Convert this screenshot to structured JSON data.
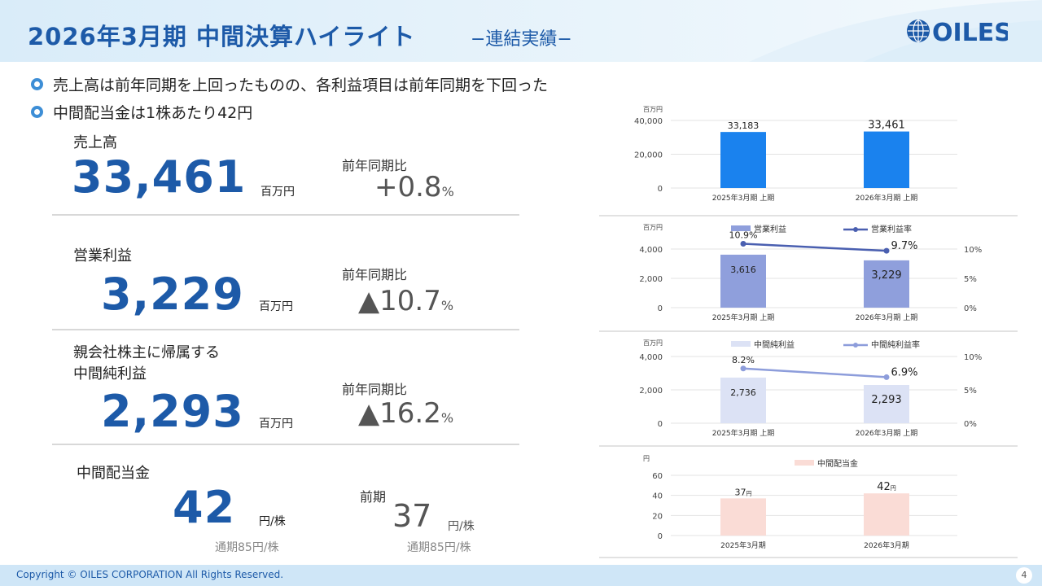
{
  "header": {
    "title": "2026年3月期 中間決算ハイライト",
    "subtitle": "−連結実績−",
    "logo_text": "OILES"
  },
  "bullets": [
    "売上高は前年同期を上回ったものの、各利益項目は前年同期を下回った",
    "中間配当金は1株あたり42円"
  ],
  "kpis": {
    "sales": {
      "label": "売上高",
      "value": "33,461",
      "unit": "百万円",
      "cmp_label": "前年同期比",
      "cmp_value": "+0.8",
      "cmp_pct": "%"
    },
    "op": {
      "label": "営業利益",
      "value": "3,229",
      "unit": "百万円",
      "cmp_label": "前年同期比",
      "cmp_value": "▲10.7",
      "cmp_pct": "%"
    },
    "net": {
      "label_line1": "親会社株主に帰属する",
      "label_line2": "中間純利益",
      "value": "2,293",
      "unit": "百万円",
      "cmp_label": "前年同期比",
      "cmp_value": "▲16.2",
      "cmp_pct": "%"
    },
    "div": {
      "label": "中間配当金",
      "value": "42",
      "unit": "円/株",
      "annual": "通期85円/株",
      "prev_label": "前期",
      "prev_value": "37",
      "prev_unit": "円/株",
      "prev_annual": "通期85円/株"
    }
  },
  "chart_data": [
    {
      "type": "bar",
      "unit_label": "百万円",
      "categories": [
        "2025年3月期 上期",
        "2026年3月期 上期"
      ],
      "values": [
        33183,
        33461
      ],
      "value_labels": [
        "33,183",
        "33,461"
      ],
      "ylim": [
        0,
        40000
      ],
      "yticks": [
        "0",
        "20,000",
        "40,000"
      ],
      "color": "#1a82ee"
    },
    {
      "type": "bar",
      "unit_label": "百万円",
      "categories": [
        "2025年3月期 上期",
        "2026年3月期 上期"
      ],
      "series": [
        {
          "name": "営業利益",
          "values": [
            3616,
            3229
          ],
          "value_labels": [
            "3,616",
            "3,229"
          ],
          "color": "#8f9fdc"
        },
        {
          "name": "営業利益率",
          "values": [
            10.9,
            9.7
          ],
          "value_labels": [
            "10.9%",
            "9.7%"
          ],
          "color": "#4a5fb0",
          "axis": "right"
        }
      ],
      "ylim": [
        0,
        4000
      ],
      "yticks": [
        "0",
        "2,000",
        "4,000"
      ],
      "y2lim": [
        0,
        10
      ],
      "y2ticks": [
        "0%",
        "5%",
        "10%"
      ]
    },
    {
      "type": "bar",
      "unit_label": "百万円",
      "categories": [
        "2025年3月期 上期",
        "2026年3月期 上期"
      ],
      "series": [
        {
          "name": "中間純利益",
          "values": [
            2736,
            2293
          ],
          "value_labels": [
            "2,736",
            "2,293"
          ],
          "color": "#dce2f5"
        },
        {
          "name": "中間純利益率",
          "values": [
            8.2,
            6.9
          ],
          "value_labels": [
            "8.2%",
            "6.9%"
          ],
          "color": "#8d9ddb",
          "axis": "right"
        }
      ],
      "ylim": [
        0,
        4000
      ],
      "yticks": [
        "0",
        "2,000",
        "4,000"
      ],
      "y2lim": [
        0,
        10
      ],
      "y2ticks": [
        "0%",
        "5%",
        "10%"
      ]
    },
    {
      "type": "bar",
      "unit_label": "円",
      "categories": [
        "2025年3月期",
        "2026年3月期"
      ],
      "series": [
        {
          "name": "中間配当金",
          "values": [
            37,
            42
          ],
          "value_labels": [
            "37",
            "42"
          ],
          "value_suffix": "円",
          "color": "#fadcd6"
        }
      ],
      "ylim": [
        0,
        60
      ],
      "yticks": [
        "0",
        "20",
        "40",
        "60"
      ]
    }
  ],
  "footer": {
    "copyright": "Copyright © OILES CORPORATION All Rights Reserved.",
    "page": "4"
  }
}
